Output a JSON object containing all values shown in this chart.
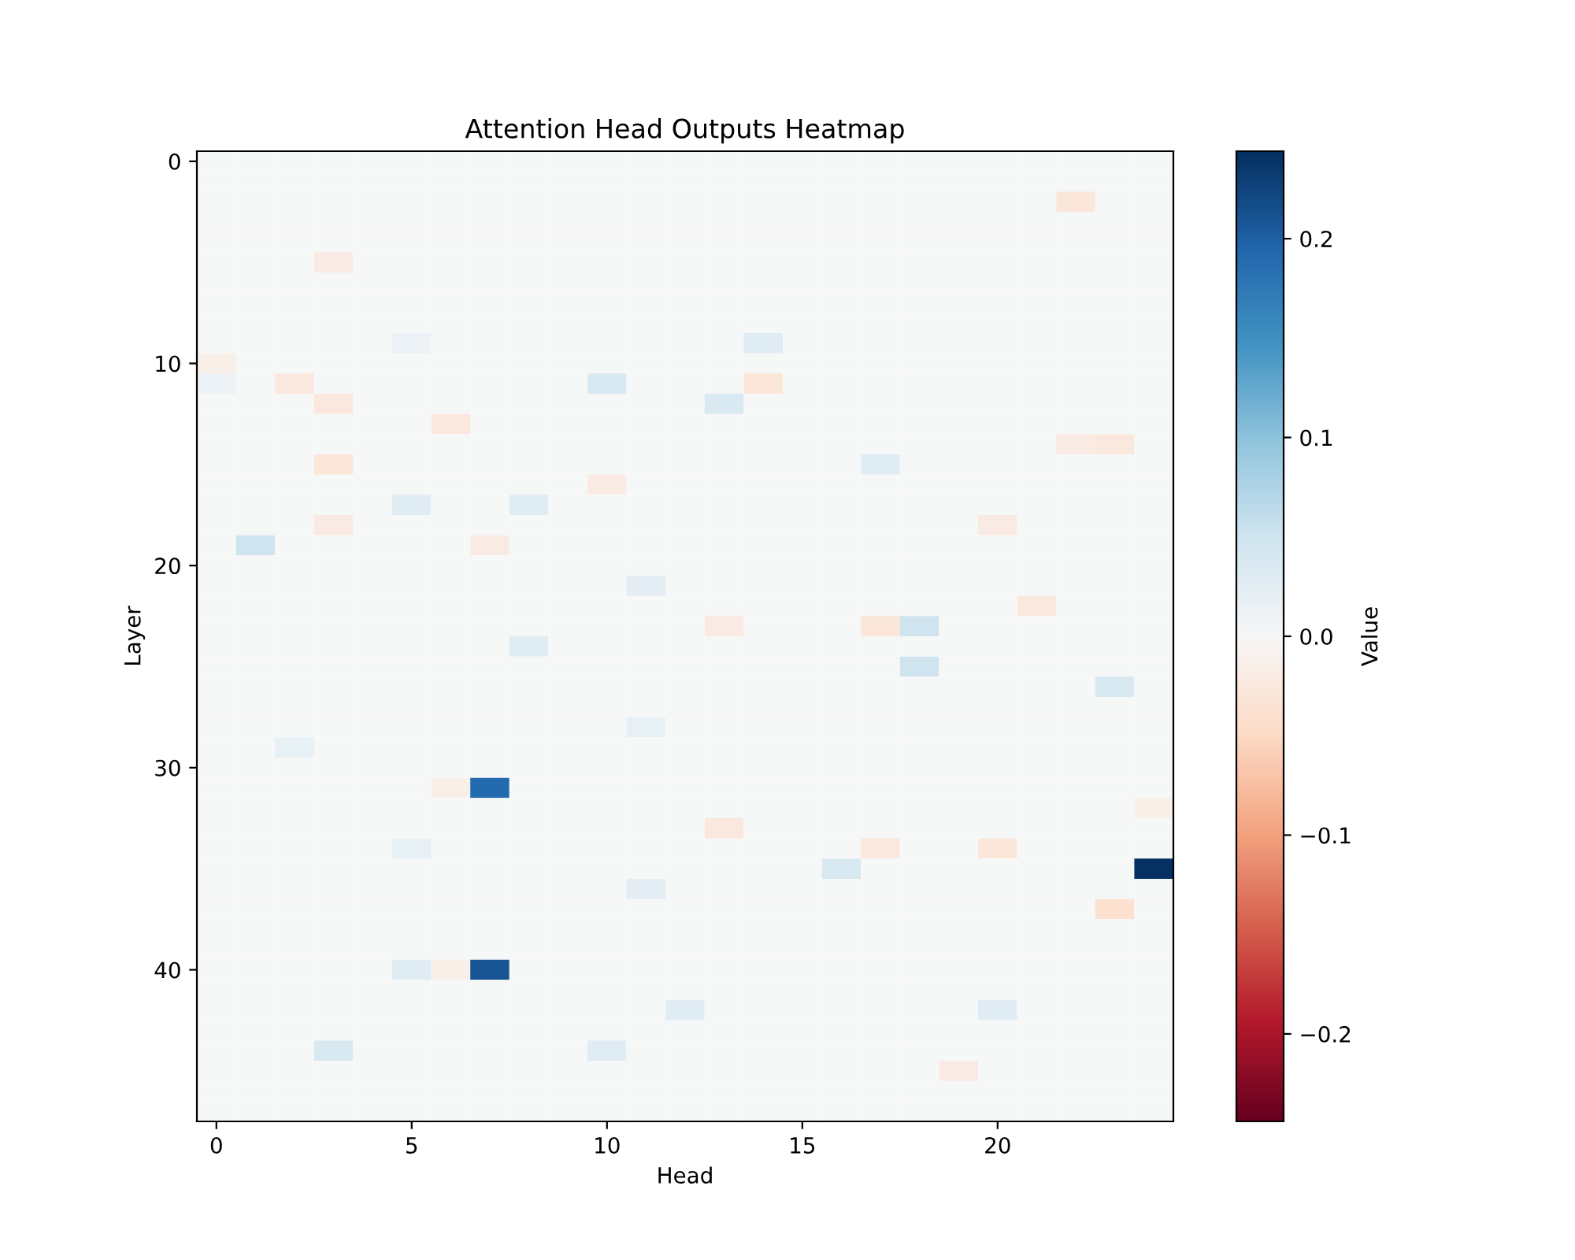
{
  "chart_data": {
    "type": "heatmap",
    "title": "Attention Head Outputs Heatmap",
    "xlabel": "Head",
    "ylabel": "Layer",
    "clabel": "Value",
    "categories": [
      "0",
      null,
      null,
      null,
      null,
      "5",
      null,
      null,
      null,
      null,
      "10",
      null,
      null,
      null,
      null,
      "15",
      null,
      null,
      null,
      null,
      "20",
      null,
      null,
      null,
      null
    ],
    "y_categories": [
      "0",
      null,
      null,
      null,
      null,
      null,
      null,
      null,
      null,
      null,
      "10",
      null,
      null,
      null,
      null,
      null,
      null,
      null,
      null,
      null,
      "20",
      null,
      null,
      null,
      null,
      null,
      null,
      null,
      null,
      null,
      "30",
      null,
      null,
      null,
      null,
      null,
      null,
      null,
      null,
      null,
      "40",
      null,
      null,
      null,
      null,
      null,
      null,
      null
    ],
    "clim": [
      -0.244,
      0.244
    ],
    "cticks": [
      {
        "value": -0.2,
        "label": "−0.2"
      },
      {
        "value": -0.1,
        "label": "−0.1"
      },
      {
        "value": 0.0,
        "label": "0.0"
      },
      {
        "value": 0.1,
        "label": "0.1"
      },
      {
        "value": 0.2,
        "label": "0.2"
      }
    ],
    "cells": [
      [
        0,
        0,
        0,
        0,
        0,
        0,
        0,
        0,
        0,
        0,
        0,
        0,
        0,
        0,
        0,
        0,
        0,
        0,
        0,
        0,
        0,
        0,
        0,
        0,
        0
      ],
      [
        0,
        0,
        0,
        0,
        0,
        0,
        0,
        0,
        0,
        0,
        0,
        0,
        0,
        0,
        0,
        0,
        0,
        0,
        0,
        0,
        0,
        0,
        0,
        0,
        0
      ],
      [
        0,
        0,
        0,
        0,
        0,
        0,
        0,
        0,
        0,
        0,
        0,
        0,
        0,
        0,
        0,
        0,
        0,
        0,
        0,
        0,
        0,
        0,
        -0.03,
        0,
        0
      ],
      [
        0,
        0,
        0,
        0,
        0,
        0,
        0,
        0,
        0,
        0,
        0,
        0,
        0,
        0,
        0,
        0,
        0,
        0,
        0,
        0,
        0,
        0,
        0,
        0,
        0
      ],
      [
        0,
        0,
        0,
        0,
        0,
        0,
        0,
        0,
        0,
        0,
        0,
        0,
        0,
        0,
        0,
        0,
        0,
        0,
        0,
        0,
        0,
        0,
        0,
        0,
        0
      ],
      [
        0,
        0,
        0,
        -0.02,
        0,
        0,
        0,
        0,
        0,
        0,
        0,
        0,
        0,
        0,
        0,
        0,
        0,
        0,
        0,
        0,
        0,
        0,
        0,
        0,
        0
      ],
      [
        0,
        0,
        0,
        0,
        0,
        0,
        0,
        0,
        0,
        0,
        0,
        0,
        0,
        0,
        0,
        0,
        0,
        0,
        0,
        0,
        0,
        0,
        0,
        0,
        0
      ],
      [
        0,
        0,
        0,
        0,
        0,
        0,
        0,
        0,
        0,
        0,
        0,
        0,
        0,
        0,
        0,
        0,
        0,
        0,
        0,
        0,
        0,
        0,
        0,
        0,
        0
      ],
      [
        0,
        0,
        0,
        0,
        0,
        0,
        0,
        0,
        0,
        0,
        0,
        0,
        0,
        0,
        0,
        0,
        0,
        0,
        0,
        0,
        0,
        0,
        0,
        0,
        0
      ],
      [
        0,
        0,
        0,
        0,
        0,
        0.015,
        0,
        0,
        0,
        0,
        0,
        0,
        0,
        0,
        0.03,
        0,
        0,
        0,
        0,
        0,
        0,
        0,
        0,
        0,
        0
      ],
      [
        -0.015,
        0,
        0,
        0,
        0,
        0,
        0,
        0,
        0,
        0,
        0,
        0,
        0,
        0,
        0,
        0,
        0,
        0,
        0,
        0,
        0,
        0,
        0,
        0,
        0
      ],
      [
        0.015,
        0,
        -0.025,
        0,
        0,
        0,
        0,
        0,
        0,
        0,
        0.04,
        0,
        0,
        0,
        -0.03,
        0,
        0,
        0,
        0,
        0,
        0,
        0,
        0,
        0,
        0
      ],
      [
        0,
        0,
        0,
        -0.025,
        0,
        0,
        0,
        0,
        0,
        0,
        0,
        0,
        0,
        0.04,
        0,
        0,
        0,
        0,
        0,
        0,
        0,
        0,
        0,
        0,
        0
      ],
      [
        0,
        0,
        0,
        0,
        0,
        0,
        -0.025,
        0,
        0,
        0,
        0,
        0,
        0,
        0,
        0,
        0,
        0,
        0,
        0,
        0,
        0,
        0,
        0,
        0,
        0
      ],
      [
        0,
        0,
        0,
        0,
        0,
        0,
        0,
        0,
        0,
        0,
        0,
        0,
        0,
        0,
        0,
        0,
        0,
        0,
        0,
        0,
        0,
        0,
        -0.02,
        -0.025,
        0
      ],
      [
        0,
        0,
        0,
        -0.03,
        0,
        0,
        0,
        0,
        0,
        0,
        0,
        0,
        0,
        0,
        0,
        0,
        0,
        0.03,
        0,
        0,
        0,
        0,
        0,
        0,
        0
      ],
      [
        0,
        0,
        0,
        0,
        0,
        0,
        0,
        0,
        0,
        0,
        -0.02,
        0,
        0,
        0,
        0,
        0,
        0,
        0,
        0,
        0,
        0,
        0,
        0,
        0,
        0
      ],
      [
        0,
        0,
        0,
        0,
        0,
        0.03,
        0,
        0,
        0.03,
        0,
        0,
        0,
        0,
        0,
        0,
        0,
        0,
        0,
        0,
        0,
        0,
        0,
        0,
        0,
        0
      ],
      [
        0,
        0,
        0,
        -0.02,
        0,
        0,
        0,
        0,
        0,
        0,
        0,
        0,
        0,
        0,
        0,
        0,
        0,
        0,
        0,
        0,
        -0.02,
        0,
        0,
        0,
        0
      ],
      [
        0,
        0.05,
        0,
        0,
        0,
        0,
        0,
        -0.02,
        0,
        0,
        0,
        0,
        0,
        0,
        0,
        0,
        0,
        0,
        0,
        0,
        0,
        0,
        0,
        0,
        0
      ],
      [
        0,
        0,
        0,
        0,
        0,
        0,
        0,
        0,
        0,
        0,
        0,
        0,
        0,
        0,
        0,
        0,
        0,
        0,
        0,
        0,
        0,
        0,
        0,
        0,
        0
      ],
      [
        0,
        0,
        0,
        0,
        0,
        0,
        0,
        0,
        0,
        0,
        0,
        0.025,
        0,
        0,
        0,
        0,
        0,
        0,
        0,
        0,
        0,
        0,
        0,
        0,
        0
      ],
      [
        0,
        0,
        0,
        0,
        0,
        0,
        0,
        0,
        0,
        0,
        0,
        0,
        0,
        0,
        0,
        0,
        0,
        0,
        0,
        0,
        0,
        -0.025,
        0,
        0,
        0
      ],
      [
        0,
        0,
        0,
        0,
        0,
        0,
        0,
        0,
        0,
        0,
        0,
        0,
        0,
        -0.02,
        0,
        0,
        0,
        -0.03,
        0.05,
        0,
        0,
        0,
        0,
        0,
        0
      ],
      [
        0,
        0,
        0,
        0,
        0,
        0,
        0,
        0,
        0.03,
        0,
        0,
        0,
        0,
        0,
        0,
        0,
        0,
        0,
        0,
        0,
        0,
        0,
        0,
        0,
        0
      ],
      [
        0,
        0,
        0,
        0,
        0,
        0,
        0,
        0,
        0,
        0,
        0,
        0,
        0,
        0,
        0,
        0,
        0,
        0,
        0.05,
        0,
        0,
        0,
        0,
        0,
        0
      ],
      [
        0,
        0,
        0,
        0,
        0,
        0,
        0,
        0,
        0,
        0,
        0,
        0,
        0,
        0,
        0,
        0,
        0,
        0,
        0,
        0,
        0,
        0,
        0,
        0.04,
        0
      ],
      [
        0,
        0,
        0,
        0,
        0,
        0,
        0,
        0,
        0,
        0,
        0,
        0,
        0,
        0,
        0,
        0,
        0,
        0,
        0,
        0,
        0,
        0,
        0,
        0,
        0
      ],
      [
        0,
        0,
        0,
        0,
        0,
        0,
        0,
        0,
        0,
        0,
        0,
        0.02,
        0,
        0,
        0,
        0,
        0,
        0,
        0,
        0,
        0,
        0,
        0,
        0,
        0
      ],
      [
        0,
        0,
        0.02,
        0,
        0,
        0,
        0,
        0,
        0,
        0,
        0,
        0,
        0,
        0,
        0,
        0,
        0,
        0,
        0,
        0,
        0,
        0,
        0,
        0,
        0
      ],
      [
        0,
        0,
        0,
        0,
        0,
        0,
        0,
        0,
        0,
        0,
        0,
        0,
        0,
        0,
        0,
        0,
        0,
        0,
        0,
        0,
        0,
        0,
        0,
        0,
        0
      ],
      [
        0,
        0,
        0,
        0,
        0,
        0,
        -0.015,
        0.19,
        0,
        0,
        0,
        0,
        0,
        0,
        0,
        0,
        0,
        0,
        0,
        0,
        0,
        0,
        0,
        0,
        0
      ],
      [
        0,
        0,
        0,
        0,
        0,
        0,
        0,
        0,
        0,
        0,
        0,
        0,
        0,
        0,
        0,
        0,
        0,
        0,
        0,
        0,
        0,
        0,
        0,
        0,
        -0.015
      ],
      [
        0,
        0,
        0,
        0,
        0,
        0,
        0,
        0,
        0,
        0,
        0,
        0,
        0,
        -0.025,
        0,
        0,
        0,
        0,
        0,
        0,
        0,
        0,
        0,
        0,
        0
      ],
      [
        0,
        0,
        0,
        0,
        0,
        0.02,
        0,
        0,
        0,
        0,
        0,
        0,
        0,
        0,
        0,
        0,
        0,
        -0.025,
        0,
        0,
        -0.03,
        0,
        0,
        0,
        0
      ],
      [
        0,
        0,
        0,
        0,
        0,
        0,
        0,
        0,
        0,
        0,
        0,
        0,
        0,
        0,
        0,
        0,
        0.04,
        0,
        0,
        0,
        0,
        0,
        0,
        0,
        0.244
      ],
      [
        0,
        0,
        0,
        0,
        0,
        0,
        0,
        0,
        0,
        0,
        0,
        0.025,
        0,
        0,
        0,
        0,
        0,
        0,
        0,
        0,
        0,
        0,
        0,
        0,
        0
      ],
      [
        0,
        0,
        0,
        0,
        0,
        0,
        0,
        0,
        0,
        0,
        0,
        0,
        0,
        0,
        0,
        0,
        0,
        0,
        0,
        0,
        0,
        0,
        0,
        -0.04,
        0
      ],
      [
        0,
        0,
        0,
        0,
        0,
        0,
        0,
        0,
        0,
        0,
        0,
        0,
        0,
        0,
        0,
        0,
        0,
        0,
        0,
        0,
        0,
        0,
        0,
        0,
        0
      ],
      [
        0,
        0,
        0,
        0,
        0,
        0,
        0,
        0,
        0,
        0,
        0,
        0,
        0,
        0,
        0,
        0,
        0,
        0,
        0,
        0,
        0,
        0,
        0,
        0,
        0
      ],
      [
        0,
        0,
        0,
        0,
        0,
        0.03,
        -0.015,
        0.21,
        0,
        0,
        0,
        0,
        0,
        0,
        0,
        0,
        0,
        0,
        0,
        0,
        0,
        0,
        0,
        0,
        0
      ],
      [
        0,
        0,
        0,
        0,
        0,
        0,
        0,
        0,
        0,
        0,
        0,
        0,
        0,
        0,
        0,
        0,
        0,
        0,
        0,
        0,
        0,
        0,
        0,
        0,
        0
      ],
      [
        0,
        0,
        0,
        0,
        0,
        0,
        0,
        0,
        0,
        0,
        0,
        0,
        0.03,
        0,
        0,
        0,
        0,
        0,
        0,
        0,
        0.03,
        0,
        0,
        0,
        0
      ],
      [
        0,
        0,
        0,
        0,
        0,
        0,
        0,
        0,
        0,
        0,
        0,
        0,
        0,
        0,
        0,
        0,
        0,
        0,
        0,
        0,
        0,
        0,
        0,
        0,
        0
      ],
      [
        0,
        0,
        0,
        0.04,
        0,
        0,
        0,
        0,
        0,
        0,
        0.03,
        0,
        0,
        0,
        0,
        0,
        0,
        0,
        0,
        0,
        0,
        0,
        0,
        0,
        0
      ],
      [
        0,
        0,
        0,
        0,
        0,
        0,
        0,
        0,
        0,
        0,
        0,
        0,
        0,
        0,
        0,
        0,
        0,
        0,
        0,
        -0.02,
        0,
        0,
        0,
        0,
        0
      ],
      [
        0,
        0,
        0,
        0,
        0,
        0,
        0,
        0,
        0,
        0,
        0,
        0,
        0,
        0,
        0,
        0,
        0,
        0,
        0,
        0,
        0,
        0,
        0,
        0,
        0
      ],
      [
        0,
        0,
        0,
        0,
        0,
        0,
        0,
        0,
        0,
        0,
        0,
        0,
        0,
        0,
        0,
        0,
        0,
        0,
        0,
        0,
        0,
        0,
        0,
        0,
        0
      ]
    ]
  }
}
